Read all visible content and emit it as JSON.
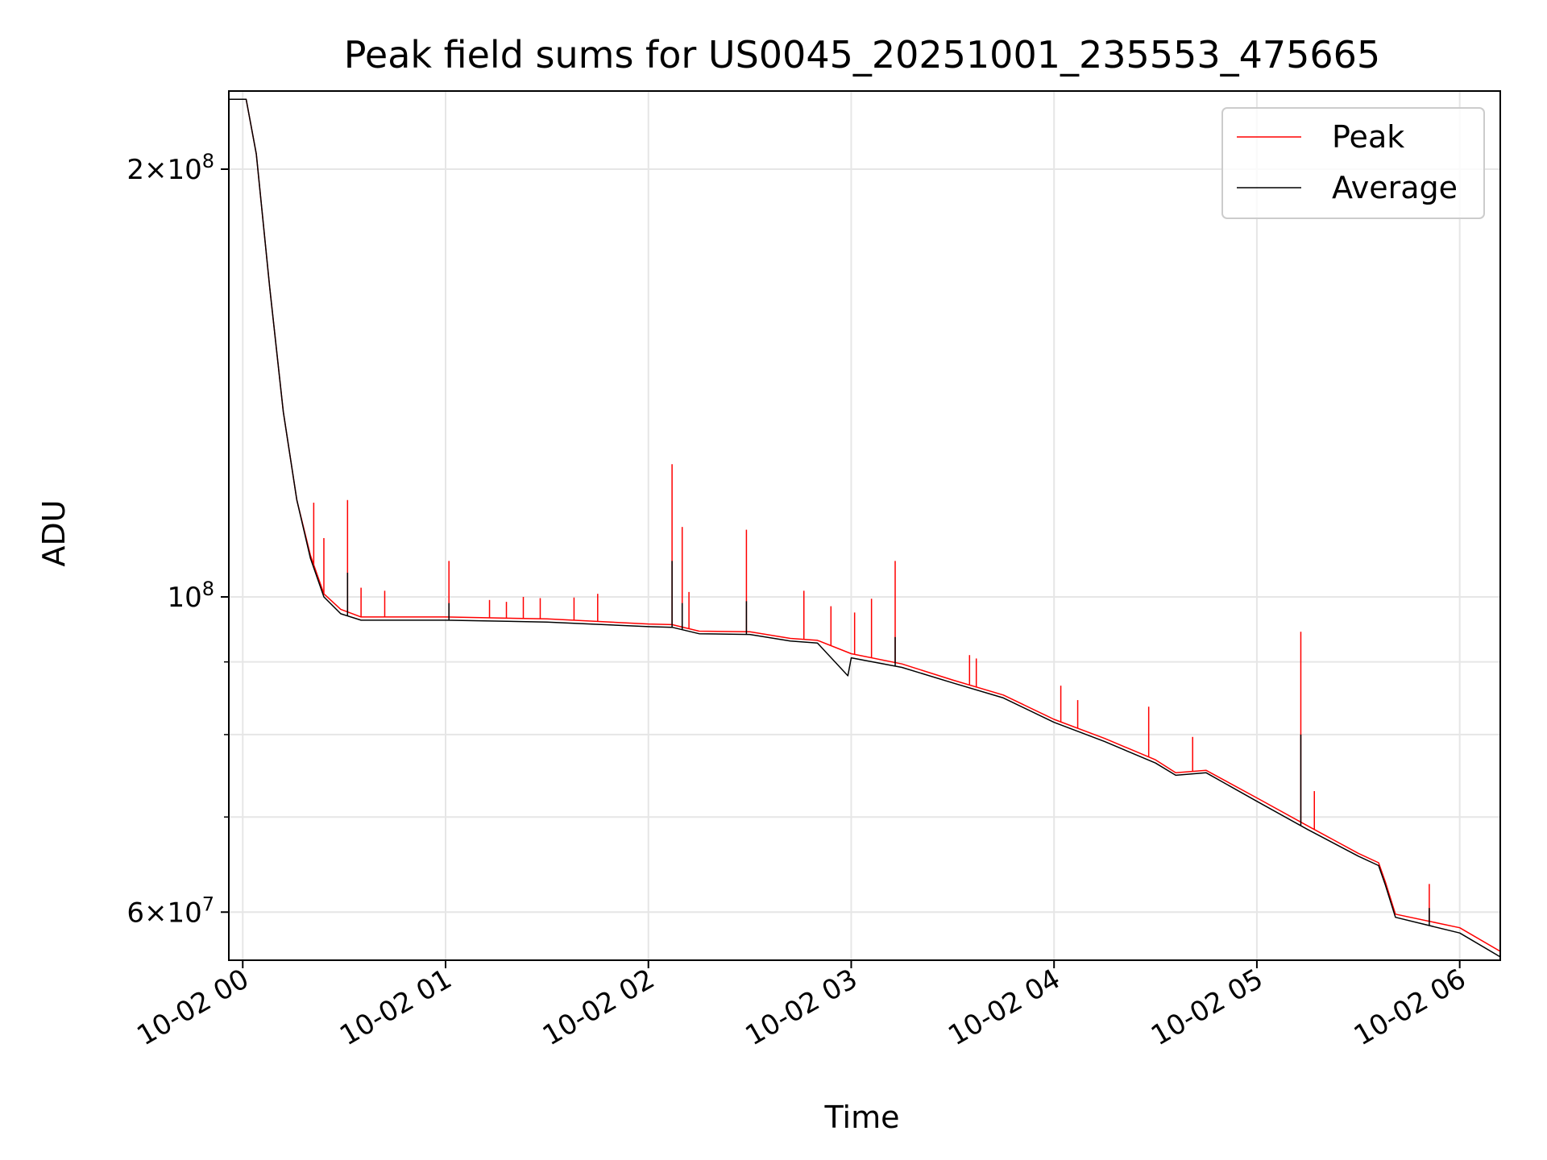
{
  "chart_data": {
    "type": "line",
    "title": "Peak field sums for US0045_20251001_235553_475665",
    "xlabel": "Time",
    "ylabel": "ADU",
    "yscale": "log",
    "ylim": [
      55500000,
      227000000
    ],
    "xlim": [
      "2025-10-01 23:55:53",
      "2025-10-02 06:12:00"
    ],
    "x_ticks": [
      {
        "t": "2025-10-02 00:00",
        "label": "10-02 00"
      },
      {
        "t": "2025-10-02 01:00",
        "label": "10-02 01"
      },
      {
        "t": "2025-10-02 02:00",
        "label": "10-02 02"
      },
      {
        "t": "2025-10-02 03:00",
        "label": "10-02 03"
      },
      {
        "t": "2025-10-02 04:00",
        "label": "10-02 04"
      },
      {
        "t": "2025-10-02 05:00",
        "label": "10-02 05"
      },
      {
        "t": "2025-10-02 06:00",
        "label": "10-02 06"
      }
    ],
    "y_major_ticks": [
      {
        "value": 60000000,
        "mantissa": "6",
        "exp": "7"
      },
      {
        "value": 100000000,
        "mantissa": "",
        "exp": "8"
      },
      {
        "value": 200000000,
        "mantissa": "2",
        "exp": "8"
      }
    ],
    "y_minor_ticks": [
      70000000,
      80000000,
      90000000
    ],
    "grid": true,
    "legend_position": "upper right",
    "series": [
      {
        "name": "Peak",
        "color": "#ff0000",
        "baseline": [
          [
            "2025-10-01 23:55:53",
            224000000
          ],
          [
            "2025-10-02 00:01:00",
            224000000
          ],
          [
            "2025-10-02 00:04:00",
            205000000
          ],
          [
            "2025-10-02 00:08:00",
            165000000
          ],
          [
            "2025-10-02 00:12:00",
            135000000
          ],
          [
            "2025-10-02 00:16:00",
            117000000
          ],
          [
            "2025-10-02 00:20:00",
            107000000
          ],
          [
            "2025-10-02 00:24:00",
            100500000
          ],
          [
            "2025-10-02 00:29:00",
            98000000
          ],
          [
            "2025-10-02 00:35:00",
            96800000
          ],
          [
            "2025-10-02 01:00:00",
            96800000
          ],
          [
            "2025-10-02 01:30:00",
            96500000
          ],
          [
            "2025-10-02 02:00:00",
            95700000
          ],
          [
            "2025-10-02 02:07:00",
            95600000
          ],
          [
            "2025-10-02 02:15:00",
            94600000
          ],
          [
            "2025-10-02 02:30:00",
            94500000
          ],
          [
            "2025-10-02 02:42:00",
            93500000
          ],
          [
            "2025-10-02 02:50:00",
            93200000
          ],
          [
            "2025-10-02 03:00:00",
            91200000
          ],
          [
            "2025-10-02 03:15:00",
            89700000
          ],
          [
            "2025-10-02 03:30:00",
            87400000
          ],
          [
            "2025-10-02 03:45:00",
            85300000
          ],
          [
            "2025-10-02 04:00:00",
            82000000
          ],
          [
            "2025-10-02 04:15:00",
            79500000
          ],
          [
            "2025-10-02 04:30:00",
            76800000
          ],
          [
            "2025-10-02 04:36:00",
            75200000
          ],
          [
            "2025-10-02 04:45:00",
            75500000
          ],
          [
            "2025-10-02 05:00:00",
            72200000
          ],
          [
            "2025-10-02 05:15:00",
            69000000
          ],
          [
            "2025-10-02 05:30:00",
            66000000
          ],
          [
            "2025-10-02 05:36:00",
            65000000
          ],
          [
            "2025-10-02 05:38:00",
            63000000
          ],
          [
            "2025-10-02 05:41:00",
            59800000
          ],
          [
            "2025-10-02 06:00:00",
            58500000
          ],
          [
            "2025-10-02 06:12:00",
            56300000
          ]
        ],
        "spikes": [
          [
            "2025-10-02 00:21:00",
            116500000
          ],
          [
            "2025-10-02 00:24:00",
            110000000
          ],
          [
            "2025-10-02 00:31:00",
            117000000
          ],
          [
            "2025-10-02 00:35:00",
            101500000
          ],
          [
            "2025-10-02 00:42:00",
            101000000
          ],
          [
            "2025-10-02 01:01:00",
            106000000
          ],
          [
            "2025-10-02 01:13:00",
            99500000
          ],
          [
            "2025-10-02 01:18:00",
            99200000
          ],
          [
            "2025-10-02 01:23:00",
            100000000
          ],
          [
            "2025-10-02 01:28:00",
            99800000
          ],
          [
            "2025-10-02 01:38:00",
            99900000
          ],
          [
            "2025-10-02 01:45:00",
            100500000
          ],
          [
            "2025-10-02 02:07:00",
            124000000
          ],
          [
            "2025-10-02 02:10:00",
            112000000
          ],
          [
            "2025-10-02 02:12:00",
            100800000
          ],
          [
            "2025-10-02 02:29:00",
            111500000
          ],
          [
            "2025-10-02 02:46:00",
            101000000
          ],
          [
            "2025-10-02 02:54:00",
            98500000
          ],
          [
            "2025-10-02 03:01:00",
            97500000
          ],
          [
            "2025-10-02 03:06:00",
            99700000
          ],
          [
            "2025-10-02 03:13:00",
            106000000
          ],
          [
            "2025-10-02 03:35:00",
            91000000
          ],
          [
            "2025-10-02 03:37:00",
            90500000
          ],
          [
            "2025-10-02 04:02:00",
            86600000
          ],
          [
            "2025-10-02 04:07:00",
            84600000
          ],
          [
            "2025-10-02 04:28:00",
            83700000
          ],
          [
            "2025-10-02 04:41:00",
            79700000
          ],
          [
            "2025-10-02 05:13:00",
            94500000
          ],
          [
            "2025-10-02 05:17:00",
            73000000
          ],
          [
            "2025-10-02 05:51:00",
            62800000
          ]
        ]
      },
      {
        "name": "Average",
        "color": "#000000",
        "baseline": [
          [
            "2025-10-01 23:55:53",
            224000000
          ],
          [
            "2025-10-02 00:01:00",
            224000000
          ],
          [
            "2025-10-02 00:04:00",
            205000000
          ],
          [
            "2025-10-02 00:08:00",
            165000000
          ],
          [
            "2025-10-02 00:12:00",
            135000000
          ],
          [
            "2025-10-02 00:16:00",
            117000000
          ],
          [
            "2025-10-02 00:20:00",
            106500000
          ],
          [
            "2025-10-02 00:24:00",
            100000000
          ],
          [
            "2025-10-02 00:29:00",
            97300000
          ],
          [
            "2025-10-02 00:35:00",
            96300000
          ],
          [
            "2025-10-02 01:00:00",
            96300000
          ],
          [
            "2025-10-02 01:30:00",
            96000000
          ],
          [
            "2025-10-02 02:00:00",
            95300000
          ],
          [
            "2025-10-02 02:07:00",
            95200000
          ],
          [
            "2025-10-02 02:15:00",
            94200000
          ],
          [
            "2025-10-02 02:30:00",
            94100000
          ],
          [
            "2025-10-02 02:42:00",
            93100000
          ],
          [
            "2025-10-02 02:50:00",
            92800000
          ],
          [
            "2025-10-02 02:59:00",
            88000000
          ],
          [
            "2025-10-02 03:00:00",
            90600000
          ],
          [
            "2025-10-02 03:15:00",
            89200000
          ],
          [
            "2025-10-02 03:30:00",
            87000000
          ],
          [
            "2025-10-02 03:45:00",
            84900000
          ],
          [
            "2025-10-02 04:00:00",
            81600000
          ],
          [
            "2025-10-02 04:15:00",
            79100000
          ],
          [
            "2025-10-02 04:30:00",
            76400000
          ],
          [
            "2025-10-02 04:36:00",
            74900000
          ],
          [
            "2025-10-02 04:45:00",
            75200000
          ],
          [
            "2025-10-02 05:00:00",
            71800000
          ],
          [
            "2025-10-02 05:15:00",
            68600000
          ],
          [
            "2025-10-02 05:30:00",
            65700000
          ],
          [
            "2025-10-02 05:36:00",
            64700000
          ],
          [
            "2025-10-02 05:38:00",
            62700000
          ],
          [
            "2025-10-02 05:41:00",
            59500000
          ],
          [
            "2025-10-02 06:00:00",
            58000000
          ],
          [
            "2025-10-02 06:12:00",
            55800000
          ]
        ],
        "spikes": [
          [
            "2025-10-02 00:31:00",
            104000000
          ],
          [
            "2025-10-02 01:01:00",
            99000000
          ],
          [
            "2025-10-02 02:07:00",
            106000000
          ],
          [
            "2025-10-02 02:10:00",
            99000000
          ],
          [
            "2025-10-02 02:29:00",
            99300000
          ],
          [
            "2025-10-02 03:13:00",
            93700000
          ],
          [
            "2025-10-02 05:13:00",
            80000000
          ],
          [
            "2025-10-02 05:51:00",
            60400000
          ]
        ]
      }
    ]
  }
}
